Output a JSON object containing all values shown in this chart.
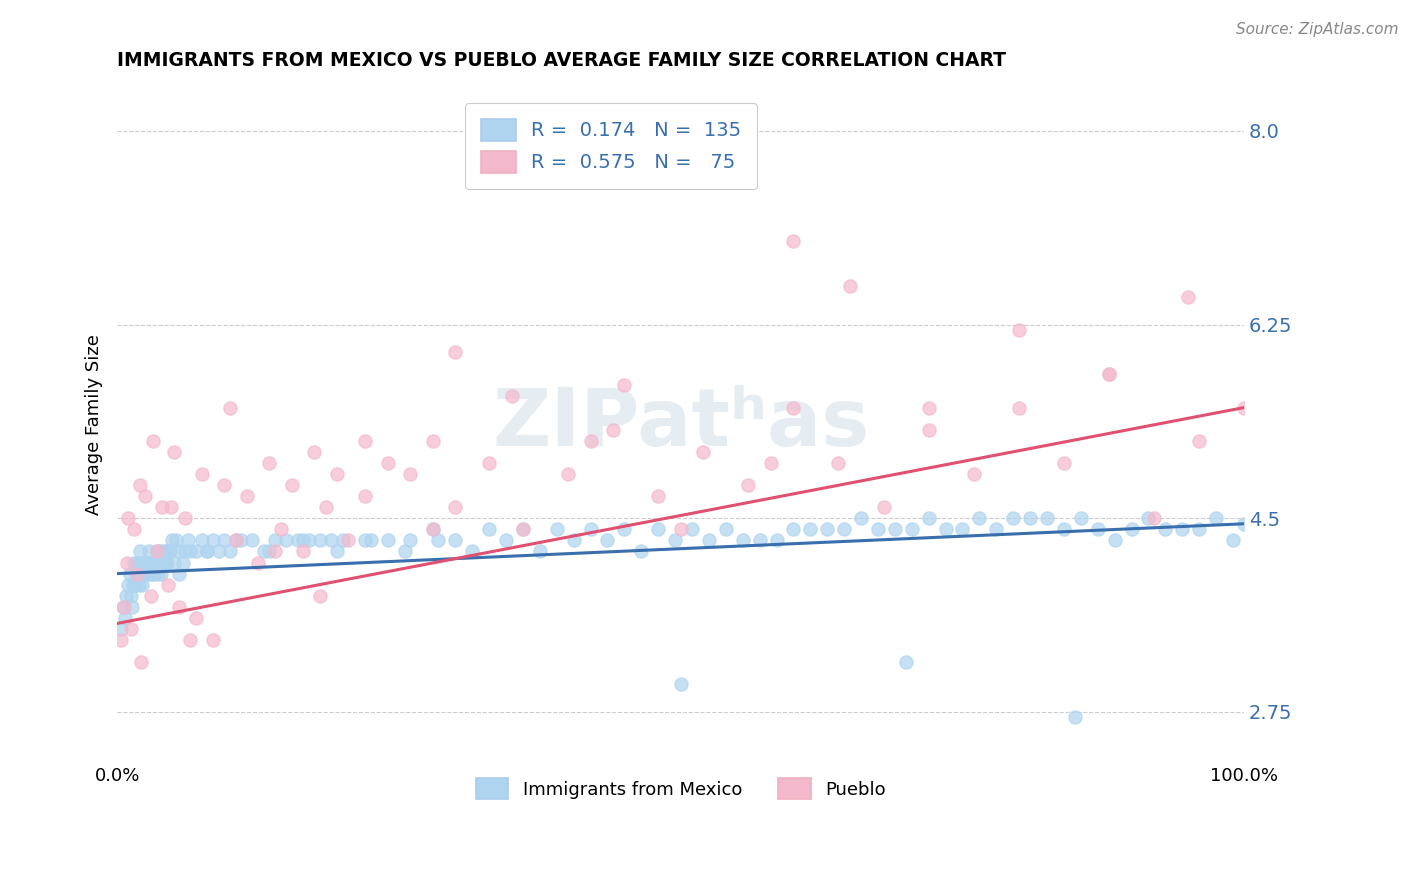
{
  "title": "IMMIGRANTS FROM MEXICO VS PUEBLO AVERAGE FAMILY SIZE CORRELATION CHART",
  "source": "Source: ZipAtlas.com",
  "xlabel": "",
  "ylabel": "Average Family Size",
  "legend_label1": "Immigrants from Mexico",
  "legend_label2": "Pueblo",
  "R1": 0.174,
  "N1": 135,
  "R2": 0.575,
  "N2": 75,
  "color_blue": "#aed4ef",
  "color_pink": "#f4b8cc",
  "line_color_blue": "#3a6fad",
  "line_color_pink": "#e05070",
  "xlim": [
    0,
    100
  ],
  "ylim": [
    2.3,
    8.4
  ],
  "yticks": [
    2.75,
    4.5,
    6.25,
    8.0
  ],
  "xtick_labels": [
    "0.0%",
    "100.0%"
  ],
  "background": "#ffffff",
  "blue_line_start_y": 4.0,
  "blue_line_end_y": 4.45,
  "pink_line_start_y": 3.55,
  "pink_line_end_y": 5.5,
  "blue_scatter_x": [
    0.3,
    0.5,
    0.7,
    0.8,
    1.0,
    1.1,
    1.2,
    1.3,
    1.4,
    1.5,
    1.6,
    1.7,
    1.8,
    1.9,
    2.0,
    2.1,
    2.2,
    2.3,
    2.4,
    2.5,
    2.6,
    2.7,
    2.8,
    2.9,
    3.0,
    3.1,
    3.2,
    3.3,
    3.4,
    3.5,
    3.6,
    3.7,
    3.8,
    3.9,
    4.0,
    4.1,
    4.2,
    4.3,
    4.4,
    4.5,
    4.7,
    4.9,
    5.0,
    5.2,
    5.5,
    5.8,
    6.0,
    6.3,
    6.5,
    7.0,
    7.5,
    8.0,
    8.5,
    9.0,
    9.5,
    10.0,
    11.0,
    12.0,
    13.0,
    14.0,
    15.0,
    16.0,
    17.0,
    18.0,
    19.0,
    20.0,
    22.0,
    24.0,
    26.0,
    28.0,
    30.0,
    33.0,
    36.0,
    39.0,
    42.0,
    45.0,
    48.0,
    51.0,
    54.0,
    57.0,
    60.0,
    63.0,
    66.0,
    69.0,
    72.0,
    75.0,
    78.0,
    81.0,
    84.0,
    87.0,
    90.0,
    93.0,
    96.0,
    99.0,
    2.0,
    3.5,
    5.5,
    8.0,
    10.5,
    13.5,
    16.5,
    19.5,
    22.5,
    25.5,
    28.5,
    31.5,
    34.5,
    37.5,
    40.5,
    43.5,
    46.5,
    49.5,
    52.5,
    55.5,
    58.5,
    61.5,
    64.5,
    67.5,
    70.5,
    73.5,
    76.5,
    79.5,
    82.5,
    85.5,
    88.5,
    91.5,
    94.5,
    97.5,
    100.0,
    50.0,
    70.0,
    85.0
  ],
  "blue_scatter_y": [
    3.5,
    3.7,
    3.6,
    3.8,
    3.9,
    4.0,
    3.8,
    3.7,
    3.9,
    4.1,
    3.9,
    4.0,
    4.1,
    3.9,
    4.0,
    4.1,
    3.9,
    4.0,
    4.1,
    4.1,
    4.0,
    4.1,
    4.2,
    4.0,
    4.1,
    4.0,
    4.1,
    4.0,
    4.1,
    4.2,
    4.0,
    4.1,
    4.2,
    4.0,
    4.1,
    4.2,
    4.1,
    4.2,
    4.1,
    4.2,
    4.2,
    4.3,
    4.1,
    4.3,
    4.2,
    4.1,
    4.2,
    4.3,
    4.2,
    4.2,
    4.3,
    4.2,
    4.3,
    4.2,
    4.3,
    4.2,
    4.3,
    4.3,
    4.2,
    4.3,
    4.3,
    4.3,
    4.3,
    4.3,
    4.3,
    4.3,
    4.3,
    4.3,
    4.3,
    4.4,
    4.3,
    4.4,
    4.4,
    4.4,
    4.4,
    4.4,
    4.4,
    4.4,
    4.4,
    4.3,
    4.4,
    4.4,
    4.5,
    4.4,
    4.5,
    4.4,
    4.4,
    4.5,
    4.4,
    4.4,
    4.4,
    4.4,
    4.4,
    4.3,
    4.2,
    4.1,
    4.0,
    4.2,
    4.3,
    4.2,
    4.3,
    4.2,
    4.3,
    4.2,
    4.3,
    4.2,
    4.3,
    4.2,
    4.3,
    4.3,
    4.2,
    4.3,
    4.3,
    4.3,
    4.3,
    4.4,
    4.4,
    4.4,
    4.4,
    4.4,
    4.5,
    4.5,
    4.5,
    4.5,
    4.3,
    4.5,
    4.4,
    4.5,
    4.45,
    3.0,
    3.2,
    2.7
  ],
  "pink_scatter_x": [
    0.3,
    0.6,
    0.9,
    1.2,
    1.5,
    1.8,
    2.1,
    2.5,
    3.0,
    3.5,
    4.0,
    4.5,
    5.0,
    5.5,
    6.0,
    6.5,
    7.5,
    8.5,
    9.5,
    10.5,
    11.5,
    12.5,
    13.5,
    14.5,
    15.5,
    16.5,
    17.5,
    18.5,
    19.5,
    20.5,
    22.0,
    24.0,
    26.0,
    28.0,
    30.0,
    33.0,
    36.0,
    40.0,
    44.0,
    48.0,
    52.0,
    56.0,
    60.0,
    64.0,
    68.0,
    72.0,
    76.0,
    80.0,
    84.0,
    88.0,
    92.0,
    96.0,
    100.0,
    1.0,
    2.0,
    3.2,
    4.8,
    7.0,
    10.0,
    14.0,
    18.0,
    22.0,
    28.0,
    35.0,
    42.0,
    50.0,
    58.0,
    65.0,
    72.0,
    80.0,
    88.0,
    95.0,
    30.0,
    45.0,
    60.0
  ],
  "pink_scatter_y": [
    3.4,
    3.7,
    4.1,
    3.5,
    4.4,
    4.0,
    3.2,
    4.7,
    3.8,
    4.2,
    4.6,
    3.9,
    5.1,
    3.7,
    4.5,
    3.4,
    4.9,
    3.4,
    4.8,
    4.3,
    4.7,
    4.1,
    5.0,
    4.4,
    4.8,
    4.2,
    5.1,
    4.6,
    4.9,
    4.3,
    4.7,
    5.0,
    4.9,
    5.2,
    4.6,
    5.0,
    4.4,
    4.9,
    5.3,
    4.7,
    5.1,
    4.8,
    5.5,
    5.0,
    4.6,
    5.3,
    4.9,
    5.5,
    5.0,
    5.8,
    4.5,
    5.2,
    5.5,
    4.5,
    4.8,
    5.2,
    4.6,
    3.6,
    5.5,
    4.2,
    3.8,
    5.2,
    4.4,
    5.6,
    5.2,
    4.4,
    5.0,
    6.6,
    5.5,
    6.2,
    5.8,
    6.5,
    6.0,
    5.7,
    7.0
  ]
}
